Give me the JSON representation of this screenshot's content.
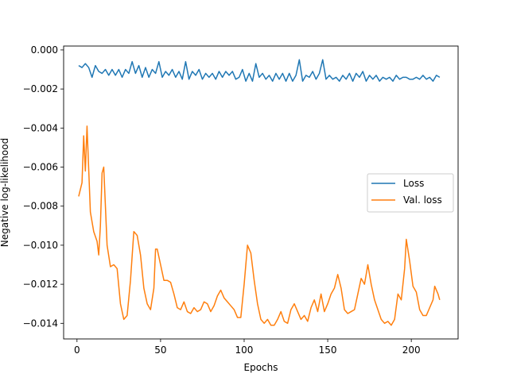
{
  "chart_data": {
    "type": "line",
    "title": "",
    "xlabel": "Epochs",
    "ylabel": "Negative log-likelihood",
    "xlim": [
      -8,
      228
    ],
    "ylim": [
      -0.0148,
      0.0002
    ],
    "xticks": [
      0,
      50,
      100,
      150,
      200
    ],
    "xtick_labels": [
      "0",
      "50",
      "100",
      "150",
      "200"
    ],
    "yticks": [
      -0.014,
      -0.012,
      -0.01,
      -0.008,
      -0.006,
      -0.004,
      -0.002,
      0.0
    ],
    "ytick_labels": [
      "−0.014",
      "−0.012",
      "−0.010",
      "−0.008",
      "−0.006",
      "−0.004",
      "−0.002",
      "0.000"
    ],
    "grid": false,
    "legend": "center-right",
    "series": [
      {
        "name": "Loss",
        "color": "#1f77b4",
        "points": [
          [
            1,
            -0.0008
          ],
          [
            3,
            -0.0009
          ],
          [
            5,
            -0.0007
          ],
          [
            7,
            -0.0009
          ],
          [
            9,
            -0.0014
          ],
          [
            11,
            -0.0008
          ],
          [
            13,
            -0.0011
          ],
          [
            15,
            -0.0012
          ],
          [
            17,
            -0.001
          ],
          [
            19,
            -0.0013
          ],
          [
            21,
            -0.001
          ],
          [
            23,
            -0.0013
          ],
          [
            25,
            -0.001
          ],
          [
            27,
            -0.0014
          ],
          [
            29,
            -0.001
          ],
          [
            31,
            -0.0012
          ],
          [
            33,
            -0.0006
          ],
          [
            35,
            -0.0012
          ],
          [
            37,
            -0.0008
          ],
          [
            39,
            -0.0014
          ],
          [
            41,
            -0.0009
          ],
          [
            43,
            -0.0014
          ],
          [
            45,
            -0.001
          ],
          [
            47,
            -0.0012
          ],
          [
            49,
            -0.0006
          ],
          [
            51,
            -0.0014
          ],
          [
            53,
            -0.0011
          ],
          [
            55,
            -0.0013
          ],
          [
            57,
            -0.001
          ],
          [
            59,
            -0.0014
          ],
          [
            61,
            -0.0011
          ],
          [
            63,
            -0.0015
          ],
          [
            65,
            -0.0006
          ],
          [
            67,
            -0.0015
          ],
          [
            69,
            -0.0011
          ],
          [
            71,
            -0.0013
          ],
          [
            73,
            -0.001
          ],
          [
            75,
            -0.0015
          ],
          [
            77,
            -0.0012
          ],
          [
            79,
            -0.0014
          ],
          [
            81,
            -0.0012
          ],
          [
            83,
            -0.0015
          ],
          [
            85,
            -0.0011
          ],
          [
            87,
            -0.0014
          ],
          [
            89,
            -0.0011
          ],
          [
            91,
            -0.0013
          ],
          [
            93,
            -0.0011
          ],
          [
            95,
            -0.0015
          ],
          [
            97,
            -0.0014
          ],
          [
            99,
            -0.001
          ],
          [
            101,
            -0.0016
          ],
          [
            103,
            -0.0012
          ],
          [
            105,
            -0.0016
          ],
          [
            107,
            -0.0007
          ],
          [
            109,
            -0.0014
          ],
          [
            111,
            -0.0012
          ],
          [
            113,
            -0.0015
          ],
          [
            115,
            -0.0013
          ],
          [
            117,
            -0.0016
          ],
          [
            119,
            -0.0012
          ],
          [
            121,
            -0.0015
          ],
          [
            123,
            -0.0012
          ],
          [
            125,
            -0.0016
          ],
          [
            127,
            -0.0012
          ],
          [
            129,
            -0.0016
          ],
          [
            131,
            -0.0013
          ],
          [
            133,
            -0.0005
          ],
          [
            135,
            -0.0016
          ],
          [
            137,
            -0.0013
          ],
          [
            139,
            -0.0014
          ],
          [
            141,
            -0.0011
          ],
          [
            143,
            -0.0015
          ],
          [
            145,
            -0.0012
          ],
          [
            147,
            -0.0005
          ],
          [
            149,
            -0.0015
          ],
          [
            151,
            -0.0013
          ],
          [
            153,
            -0.0015
          ],
          [
            155,
            -0.0014
          ],
          [
            157,
            -0.0016
          ],
          [
            159,
            -0.0013
          ],
          [
            161,
            -0.0015
          ],
          [
            163,
            -0.0012
          ],
          [
            165,
            -0.0016
          ],
          [
            167,
            -0.0012
          ],
          [
            169,
            -0.0014
          ],
          [
            171,
            -0.0011
          ],
          [
            173,
            -0.0016
          ],
          [
            175,
            -0.0013
          ],
          [
            177,
            -0.0015
          ],
          [
            179,
            -0.0013
          ],
          [
            181,
            -0.0016
          ],
          [
            183,
            -0.0014
          ],
          [
            185,
            -0.0015
          ],
          [
            187,
            -0.0014
          ],
          [
            189,
            -0.0016
          ],
          [
            191,
            -0.0013
          ],
          [
            193,
            -0.0015
          ],
          [
            195,
            -0.0014
          ],
          [
            197,
            -0.0014
          ],
          [
            199,
            -0.0015
          ],
          [
            201,
            -0.0015
          ],
          [
            203,
            -0.0014
          ],
          [
            205,
            -0.0015
          ],
          [
            207,
            -0.0013
          ],
          [
            209,
            -0.0015
          ],
          [
            211,
            -0.0014
          ],
          [
            213,
            -0.0016
          ],
          [
            215,
            -0.0013
          ],
          [
            217,
            -0.0014
          ]
        ]
      },
      {
        "name": "Val. loss",
        "color": "#ff7f0e",
        "points": [
          [
            1,
            -0.0075
          ],
          [
            3,
            -0.0068
          ],
          [
            4,
            -0.0044
          ],
          [
            5,
            -0.0062
          ],
          [
            6,
            -0.0039
          ],
          [
            8,
            -0.0083
          ],
          [
            10,
            -0.0093
          ],
          [
            12,
            -0.0098
          ],
          [
            13,
            -0.0105
          ],
          [
            14,
            -0.009
          ],
          [
            15,
            -0.0063
          ],
          [
            16,
            -0.006
          ],
          [
            18,
            -0.01
          ],
          [
            20,
            -0.0111
          ],
          [
            22,
            -0.011
          ],
          [
            24,
            -0.0112
          ],
          [
            26,
            -0.013
          ],
          [
            28,
            -0.0138
          ],
          [
            30,
            -0.0136
          ],
          [
            32,
            -0.0118
          ],
          [
            34,
            -0.0093
          ],
          [
            36,
            -0.0095
          ],
          [
            38,
            -0.0105
          ],
          [
            40,
            -0.0122
          ],
          [
            42,
            -0.013
          ],
          [
            44,
            -0.0133
          ],
          [
            46,
            -0.0122
          ],
          [
            47,
            -0.0102
          ],
          [
            48,
            -0.0102
          ],
          [
            50,
            -0.011
          ],
          [
            52,
            -0.0118
          ],
          [
            54,
            -0.0118
          ],
          [
            56,
            -0.0119
          ],
          [
            58,
            -0.0125
          ],
          [
            60,
            -0.0132
          ],
          [
            62,
            -0.0133
          ],
          [
            64,
            -0.0129
          ],
          [
            66,
            -0.0134
          ],
          [
            68,
            -0.0135
          ],
          [
            70,
            -0.0132
          ],
          [
            72,
            -0.0134
          ],
          [
            74,
            -0.0133
          ],
          [
            76,
            -0.0129
          ],
          [
            78,
            -0.013
          ],
          [
            80,
            -0.0134
          ],
          [
            82,
            -0.0131
          ],
          [
            84,
            -0.0126
          ],
          [
            86,
            -0.0123
          ],
          [
            88,
            -0.0127
          ],
          [
            90,
            -0.0129
          ],
          [
            92,
            -0.0131
          ],
          [
            94,
            -0.0133
          ],
          [
            96,
            -0.0137
          ],
          [
            98,
            -0.0137
          ],
          [
            100,
            -0.012
          ],
          [
            102,
            -0.01
          ],
          [
            104,
            -0.0104
          ],
          [
            106,
            -0.0118
          ],
          [
            108,
            -0.013
          ],
          [
            110,
            -0.0138
          ],
          [
            112,
            -0.014
          ],
          [
            114,
            -0.0138
          ],
          [
            116,
            -0.0141
          ],
          [
            118,
            -0.0141
          ],
          [
            120,
            -0.0138
          ],
          [
            122,
            -0.0134
          ],
          [
            124,
            -0.0139
          ],
          [
            126,
            -0.014
          ],
          [
            128,
            -0.0133
          ],
          [
            130,
            -0.013
          ],
          [
            132,
            -0.0134
          ],
          [
            134,
            -0.0138
          ],
          [
            136,
            -0.0136
          ],
          [
            138,
            -0.0139
          ],
          [
            140,
            -0.0132
          ],
          [
            142,
            -0.0128
          ],
          [
            144,
            -0.0134
          ],
          [
            146,
            -0.0125
          ],
          [
            148,
            -0.0134
          ],
          [
            150,
            -0.013
          ],
          [
            152,
            -0.0125
          ],
          [
            154,
            -0.0122
          ],
          [
            156,
            -0.0115
          ],
          [
            158,
            -0.0122
          ],
          [
            160,
            -0.0133
          ],
          [
            162,
            -0.0135
          ],
          [
            164,
            -0.0134
          ],
          [
            166,
            -0.0133
          ],
          [
            168,
            -0.0125
          ],
          [
            170,
            -0.0117
          ],
          [
            172,
            -0.012
          ],
          [
            174,
            -0.011
          ],
          [
            176,
            -0.012
          ],
          [
            178,
            -0.0128
          ],
          [
            180,
            -0.0133
          ],
          [
            182,
            -0.0138
          ],
          [
            184,
            -0.014
          ],
          [
            186,
            -0.0139
          ],
          [
            188,
            -0.0141
          ],
          [
            190,
            -0.0138
          ],
          [
            192,
            -0.0125
          ],
          [
            194,
            -0.0128
          ],
          [
            196,
            -0.0112
          ],
          [
            197,
            -0.0097
          ],
          [
            199,
            -0.0108
          ],
          [
            201,
            -0.0121
          ],
          [
            203,
            -0.0124
          ],
          [
            205,
            -0.0133
          ],
          [
            207,
            -0.0136
          ],
          [
            209,
            -0.0136
          ],
          [
            211,
            -0.0132
          ],
          [
            213,
            -0.0128
          ],
          [
            214,
            -0.0121
          ],
          [
            216,
            -0.0125
          ],
          [
            217,
            -0.0128
          ]
        ]
      }
    ]
  }
}
